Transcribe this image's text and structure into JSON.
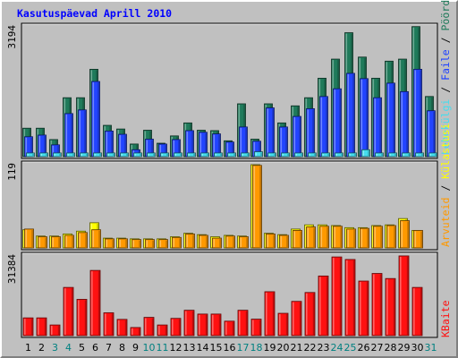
{
  "chart_data": {
    "type": "bar",
    "title": "Kasutuspäevad Aprill 2010",
    "x": [
      "1",
      "2",
      "3",
      "4",
      "5",
      "6",
      "7",
      "8",
      "9",
      "10",
      "11",
      "12",
      "13",
      "14",
      "15",
      "16",
      "17",
      "18",
      "19",
      "20",
      "21",
      "22",
      "23",
      "24",
      "25",
      "26",
      "27",
      "28",
      "29",
      "30",
      "31"
    ],
    "weekend_days": [
      "3",
      "4",
      "10",
      "11",
      "17",
      "18",
      "24",
      "25",
      "31"
    ],
    "panels": [
      {
        "id": "top",
        "max_label": "3194",
        "ylim": [
          0,
          3194
        ],
        "series": [
          {
            "name": "Pöördumisi",
            "color": "#1f7a5a",
            "values": [
              700,
              700,
              420,
              1450,
              1450,
              2150,
              770,
              680,
              310,
              650,
              330,
              510,
              830,
              650,
              640,
              390,
              1300,
              430,
              1300,
              830,
              1250,
              1450,
              1930,
              2400,
              3050,
              2450,
              1930,
              2350,
              2400,
              3200,
              1480
            ]
          },
          {
            "name": "Faile",
            "color": "#2244ff",
            "values": [
              490,
              530,
              290,
              1060,
              1150,
              1850,
              630,
              550,
              170,
              430,
              310,
              420,
              640,
              600,
              560,
              360,
              730,
              380,
              1200,
              730,
              990,
              1180,
              1480,
              1670,
              2050,
              1920,
              1450,
              1810,
              1600,
              2150,
              1130
            ]
          },
          {
            "name": "Lehekülgi",
            "color": "#44ddee",
            "values": [
              90,
              90,
              90,
              90,
              90,
              90,
              90,
              90,
              90,
              90,
              90,
              90,
              90,
              90,
              90,
              90,
              90,
              120,
              90,
              90,
              90,
              90,
              90,
              90,
              90,
              170,
              90,
              90,
              90,
              90,
              90
            ]
          }
        ]
      },
      {
        "id": "mid",
        "max_label": "119",
        "ylim": [
          0,
          119
        ],
        "series": [
          {
            "name": "Külastusi",
            "color": "#ffff00",
            "values": [
              26,
              17,
              17,
              20,
              24,
              36,
              14,
              14,
              13,
              13,
              13,
              16,
              21,
              19,
              16,
              18,
              17,
              119,
              21,
              19,
              27,
              33,
              33,
              32,
              29,
              29,
              32,
              33,
              42,
              25,
              0
            ]
          },
          {
            "name": "Arvuteid",
            "color": "#ff9900",
            "values": [
              27,
              16,
              16,
              18,
              22,
              26,
              13,
              13,
              12,
              12,
              12,
              15,
              20,
              18,
              14,
              17,
              16,
              118,
              20,
              18,
              25,
              30,
              31,
              31,
              27,
              28,
              31,
              32,
              39,
              25,
              0
            ]
          }
        ]
      },
      {
        "id": "bottom",
        "max_label": "31384",
        "ylim": [
          0,
          31384
        ],
        "series": [
          {
            "name": "KBaite",
            "color": "#ff1111",
            "values": [
              7000,
              7000,
              4200,
              19000,
              14300,
              25700,
              9000,
              6400,
              3200,
              7200,
              4200,
              6800,
              10000,
              8500,
              8500,
              5700,
              10000,
              6500,
              17300,
              8800,
              13500,
              17000,
              23500,
              31000,
              30000,
              21500,
              24500,
              22500,
              31400,
              19000,
              0
            ]
          }
        ]
      }
    ]
  }
}
